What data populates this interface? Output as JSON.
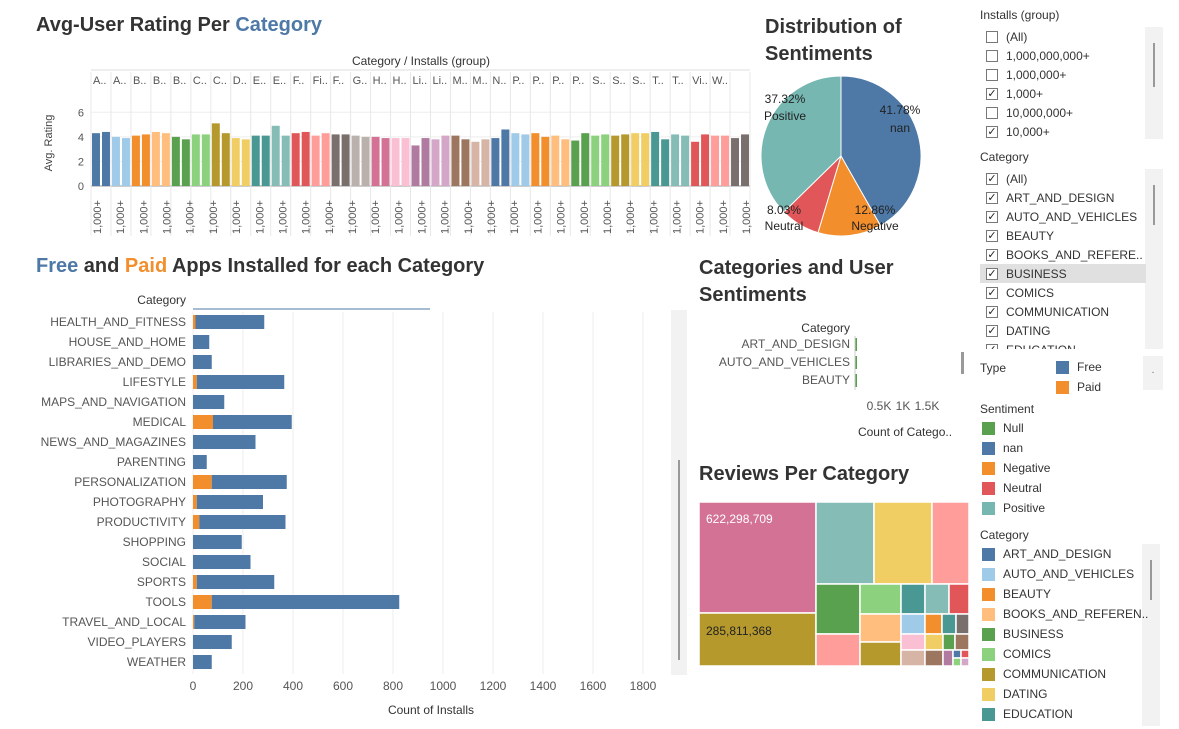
{
  "titles": {
    "avg_rating": {
      "part1": "Avg-User Rating Per ",
      "part2": "Category"
    },
    "distribution": {
      "line1": "Distribution of",
      "line2": "Sentiments"
    },
    "free_paid": {
      "free": "Free",
      "and": " and ",
      "paid": "Paid",
      "rest": " Apps Installed for each Category"
    },
    "cat_sentiments": {
      "line1": "Categories and User",
      "line2": "Sentiments"
    },
    "reviews": "Reviews Per Category"
  },
  "colors": {
    "free": "#4e79a7",
    "paid": "#f28e2b",
    "null": "#59a14f",
    "nan": "#4e79a7",
    "negative": "#f28e2b",
    "neutral": "#e15759",
    "positive": "#76b7b2",
    "title_blue": "#4e79a7",
    "title_orange": "#f28e2b"
  },
  "filters": {
    "installs": {
      "title": "Installs (group)",
      "items": [
        {
          "label": "(All)",
          "checked": false
        },
        {
          "label": "1,000,000,000+",
          "checked": false
        },
        {
          "label": "1,000,000+",
          "checked": false
        },
        {
          "label": "1,000+",
          "checked": true
        },
        {
          "label": "10,000,000+",
          "checked": false
        },
        {
          "label": "10,000+",
          "checked": true
        }
      ]
    },
    "category": {
      "title": "Category",
      "items": [
        {
          "label": "(All)",
          "checked": true
        },
        {
          "label": "ART_AND_DESIGN",
          "checked": true
        },
        {
          "label": "AUTO_AND_VEHICLES",
          "checked": true
        },
        {
          "label": "BEAUTY",
          "checked": true
        },
        {
          "label": "BOOKS_AND_REFERE..",
          "checked": true
        },
        {
          "label": "BUSINESS",
          "checked": true
        },
        {
          "label": "COMICS",
          "checked": true
        },
        {
          "label": "COMMUNICATION",
          "checked": true
        },
        {
          "label": "DATING",
          "checked": true
        },
        {
          "label": "EDUCATION",
          "checked": true
        }
      ]
    }
  },
  "type_legend": {
    "title": "Type",
    "items": [
      {
        "label": "Free",
        "color": "#4e79a7"
      },
      {
        "label": "Paid",
        "color": "#f28e2b"
      }
    ],
    "more": "."
  },
  "sentiment_legend": {
    "title": "Sentiment",
    "items": [
      {
        "label": "Null",
        "color": "#59a14f"
      },
      {
        "label": "nan",
        "color": "#4e79a7"
      },
      {
        "label": "Negative",
        "color": "#f28e2b"
      },
      {
        "label": "Neutral",
        "color": "#e15759"
      },
      {
        "label": "Positive",
        "color": "#76b7b2"
      }
    ]
  },
  "category_legend": {
    "title": "Category",
    "items": [
      {
        "label": "ART_AND_DESIGN",
        "color": "#4e79a7"
      },
      {
        "label": "AUTO_AND_VEHICLES",
        "color": "#a0cbe8"
      },
      {
        "label": "BEAUTY",
        "color": "#f28e2b"
      },
      {
        "label": "BOOKS_AND_REFEREN..",
        "color": "#ffbe7d"
      },
      {
        "label": "BUSINESS",
        "color": "#59a14f"
      },
      {
        "label": "COMICS",
        "color": "#8cd17d"
      },
      {
        "label": "COMMUNICATION",
        "color": "#b6992d"
      },
      {
        "label": "DATING",
        "color": "#f1ce63"
      },
      {
        "label": "EDUCATION",
        "color": "#499894"
      }
    ]
  },
  "chart_data": [
    {
      "id": "avg_rating",
      "type": "bar",
      "header": "Category / Installs (group)",
      "ylabel": "Avg. Rating",
      "ylim": [
        0,
        7
      ],
      "yticks": [
        0,
        2,
        4,
        6
      ],
      "category_labels": [
        "A..",
        "A..",
        "B..",
        "B..",
        "B..",
        "C..",
        "C..",
        "D..",
        "E..",
        "E..",
        "F..",
        "Fi..",
        "F..",
        "G..",
        "H..",
        "H..",
        "Li..",
        "Li..",
        "M..",
        "M..",
        "N..",
        "P..",
        "P..",
        "P..",
        "P..",
        "S..",
        "S..",
        "S..",
        "T..",
        "T..",
        "Vi..",
        "W.."
      ],
      "category_label_pairs": [
        1,
        1,
        1,
        1,
        1,
        1,
        1,
        1,
        1,
        0,
        1,
        1,
        1,
        1,
        1,
        1,
        1,
        1,
        1,
        1,
        1,
        1,
        1,
        1,
        1,
        1,
        1,
        1,
        1,
        1,
        1,
        1
      ],
      "install_label": "1,000+",
      "install_label_count": 29,
      "bar_colors": [
        "#4e79a7",
        "#4e79a7",
        "#a0cbe8",
        "#a0cbe8",
        "#f28e2b",
        "#f28e2b",
        "#ffbe7d",
        "#ffbe7d",
        "#59a14f",
        "#59a14f",
        "#8cd17d",
        "#8cd17d",
        "#b6992d",
        "#b6992d",
        "#f1ce63",
        "#f1ce63",
        "#499894",
        "#499894",
        "#86bcb6",
        "#86bcb6",
        "#e15759",
        "#e15759",
        "#ff9d9a",
        "#ff9d9a",
        "#79706e",
        "#79706e",
        "#bab0ac",
        "#bab0ac",
        "#d37295",
        "#d37295",
        "#fabfd2",
        "#fabfd2",
        "#b07aa1",
        "#b07aa1",
        "#d4a6c8",
        "#d4a6c8",
        "#9d7660",
        "#9d7660",
        "#d7b5a6",
        "#d7b5a6",
        "#4e79a7",
        "#4e79a7",
        "#a0cbe8",
        "#a0cbe8",
        "#f28e2b",
        "#f28e2b",
        "#ffbe7d",
        "#ffbe7d",
        "#59a14f",
        "#59a14f",
        "#8cd17d",
        "#8cd17d",
        "#b6992d",
        "#b6992d",
        "#f1ce63",
        "#f1ce63",
        "#499894",
        "#499894",
        "#86bcb6",
        "#86bcb6",
        "#e15759",
        "#e15759",
        "#ff9d9a",
        "#ff9d9a",
        "#79706e",
        "#79706e"
      ],
      "values": [
        4.3,
        4.4,
        4.0,
        3.9,
        4.1,
        4.2,
        4.4,
        4.3,
        4.0,
        3.8,
        4.2,
        4.2,
        5.1,
        4.3,
        3.9,
        3.8,
        4.1,
        4.1,
        4.9,
        4.1,
        4.3,
        4.4,
        4.1,
        4.3,
        4.2,
        4.2,
        4.1,
        4.0,
        4.0,
        3.9,
        3.9,
        3.9,
        3.3,
        3.9,
        3.8,
        4.1,
        4.1,
        3.8,
        3.6,
        3.8,
        3.9,
        4.6,
        4.3,
        4.2,
        4.3,
        4.0,
        4.1,
        3.8,
        3.7,
        4.3,
        4.1,
        4.2,
        4.1,
        4.2,
        4.3,
        4.3,
        4.4,
        3.8,
        4.2,
        4.1,
        3.6,
        4.2,
        4.1,
        4.1,
        3.9,
        4.2
      ]
    },
    {
      "id": "sentiments_pie",
      "type": "pie",
      "slices": [
        {
          "label": "nan",
          "value": 41.78,
          "color": "#4e79a7",
          "pct": "41.78%"
        },
        {
          "label": "Negative",
          "value": 12.86,
          "color": "#f28e2b",
          "pct": "12.86%"
        },
        {
          "label": "Neutral",
          "value": 8.03,
          "color": "#e15759",
          "pct": "8.03%"
        },
        {
          "label": "Positive",
          "value": 37.32,
          "color": "#76b7b2",
          "pct": "37.32%"
        }
      ]
    },
    {
      "id": "free_paid",
      "type": "bar",
      "orientation": "horizontal",
      "stacked": true,
      "category_header": "Category",
      "xlabel": "Count of Installs",
      "xlim": [
        0,
        1900
      ],
      "xticks": [
        0,
        200,
        400,
        600,
        800,
        1000,
        1200,
        1400,
        1600,
        1800
      ],
      "categories": [
        "HEALTH_AND_FITNESS",
        "HOUSE_AND_HOME",
        "LIBRARIES_AND_DEMO",
        "LIFESTYLE",
        "MAPS_AND_NAVIGATION",
        "MEDICAL",
        "NEWS_AND_MAGAZINES",
        "PARENTING",
        "PERSONALIZATION",
        "PHOTOGRAPHY",
        "PRODUCTIVITY",
        "SHOPPING",
        "SOCIAL",
        "SPORTS",
        "TOOLS",
        "TRAVEL_AND_LOCAL",
        "VIDEO_PLAYERS",
        "WEATHER"
      ],
      "series": [
        {
          "name": "Paid",
          "color": "#f28e2b",
          "values": [
            10,
            0,
            0,
            15,
            0,
            80,
            0,
            0,
            75,
            15,
            25,
            0,
            0,
            15,
            75,
            5,
            0,
            0
          ]
        },
        {
          "name": "Free",
          "color": "#4e79a7",
          "values": [
            275,
            65,
            75,
            350,
            125,
            315,
            250,
            55,
            300,
            265,
            345,
            195,
            230,
            310,
            750,
            205,
            155,
            75
          ]
        }
      ]
    },
    {
      "id": "cat_sentiments",
      "type": "bar",
      "orientation": "horizontal",
      "category_header": "Category",
      "xlabel": "Count of Catego..",
      "xticks": [
        "0.5K",
        "1K",
        "1.5K"
      ],
      "xlim": [
        0,
        1800
      ],
      "categories": [
        "ART_AND_DESIGN",
        "AUTO_AND_VEHICLES",
        "BEAUTY"
      ],
      "values": [
        25,
        30,
        20
      ],
      "color": "#59a14f"
    },
    {
      "id": "reviews",
      "type": "treemap",
      "labels": [
        {
          "category": "ART_AND_DESIGN",
          "value": 622298709,
          "text": "622,298,709",
          "color": "#d37295"
        },
        {
          "category": "COMMUNICATION",
          "value": 285811368,
          "text": "285,811,368",
          "color": "#b6992d"
        }
      ]
    }
  ]
}
